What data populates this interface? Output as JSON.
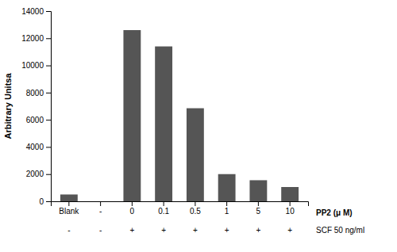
{
  "chart_data": {
    "type": "bar",
    "ylabel": "Arbitrary Unitsa",
    "categories": [
      "Blank",
      "-",
      "0",
      "0.1",
      "0.5",
      "1",
      "5",
      "10"
    ],
    "xlabel": "PP2 (μ M)",
    "values": [
      500,
      0,
      12600,
      11400,
      6850,
      2000,
      1550,
      1050
    ],
    "color": "#555555",
    "ylim": [
      0,
      14000
    ],
    "yticks": [
      0,
      2000,
      4000,
      6000,
      8000,
      10000,
      12000,
      14000
    ],
    "grid": false,
    "annotations": [
      {
        "label": "SCF 50 ng/ml",
        "texts": [
          "-",
          "-",
          "+",
          "+",
          "+",
          "+",
          "+",
          "+"
        ]
      }
    ]
  }
}
